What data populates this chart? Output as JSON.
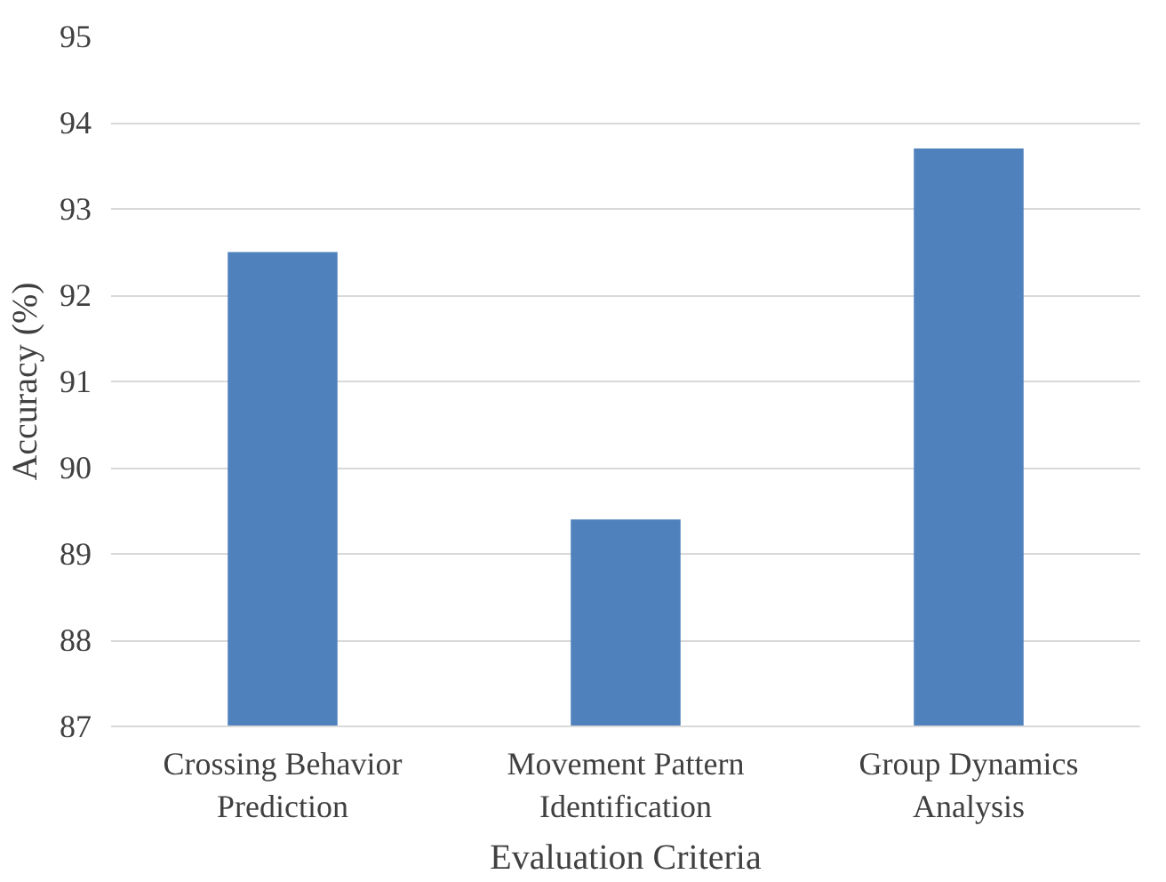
{
  "chart_data": {
    "type": "bar",
    "xlabel": "Evaluation Criteria",
    "ylabel": "Accuracy (%)",
    "categories": [
      "Crossing Behavior Prediction",
      "Movement Pattern Identification",
      "Group Dynamics Analysis"
    ],
    "values": [
      92.5,
      89.4,
      93.7
    ],
    "color": "#4f81bd",
    "ylim": [
      87,
      95
    ],
    "yticks": [
      87,
      88,
      89,
      90,
      91,
      92,
      93,
      94,
      95
    ],
    "grid": "y"
  }
}
